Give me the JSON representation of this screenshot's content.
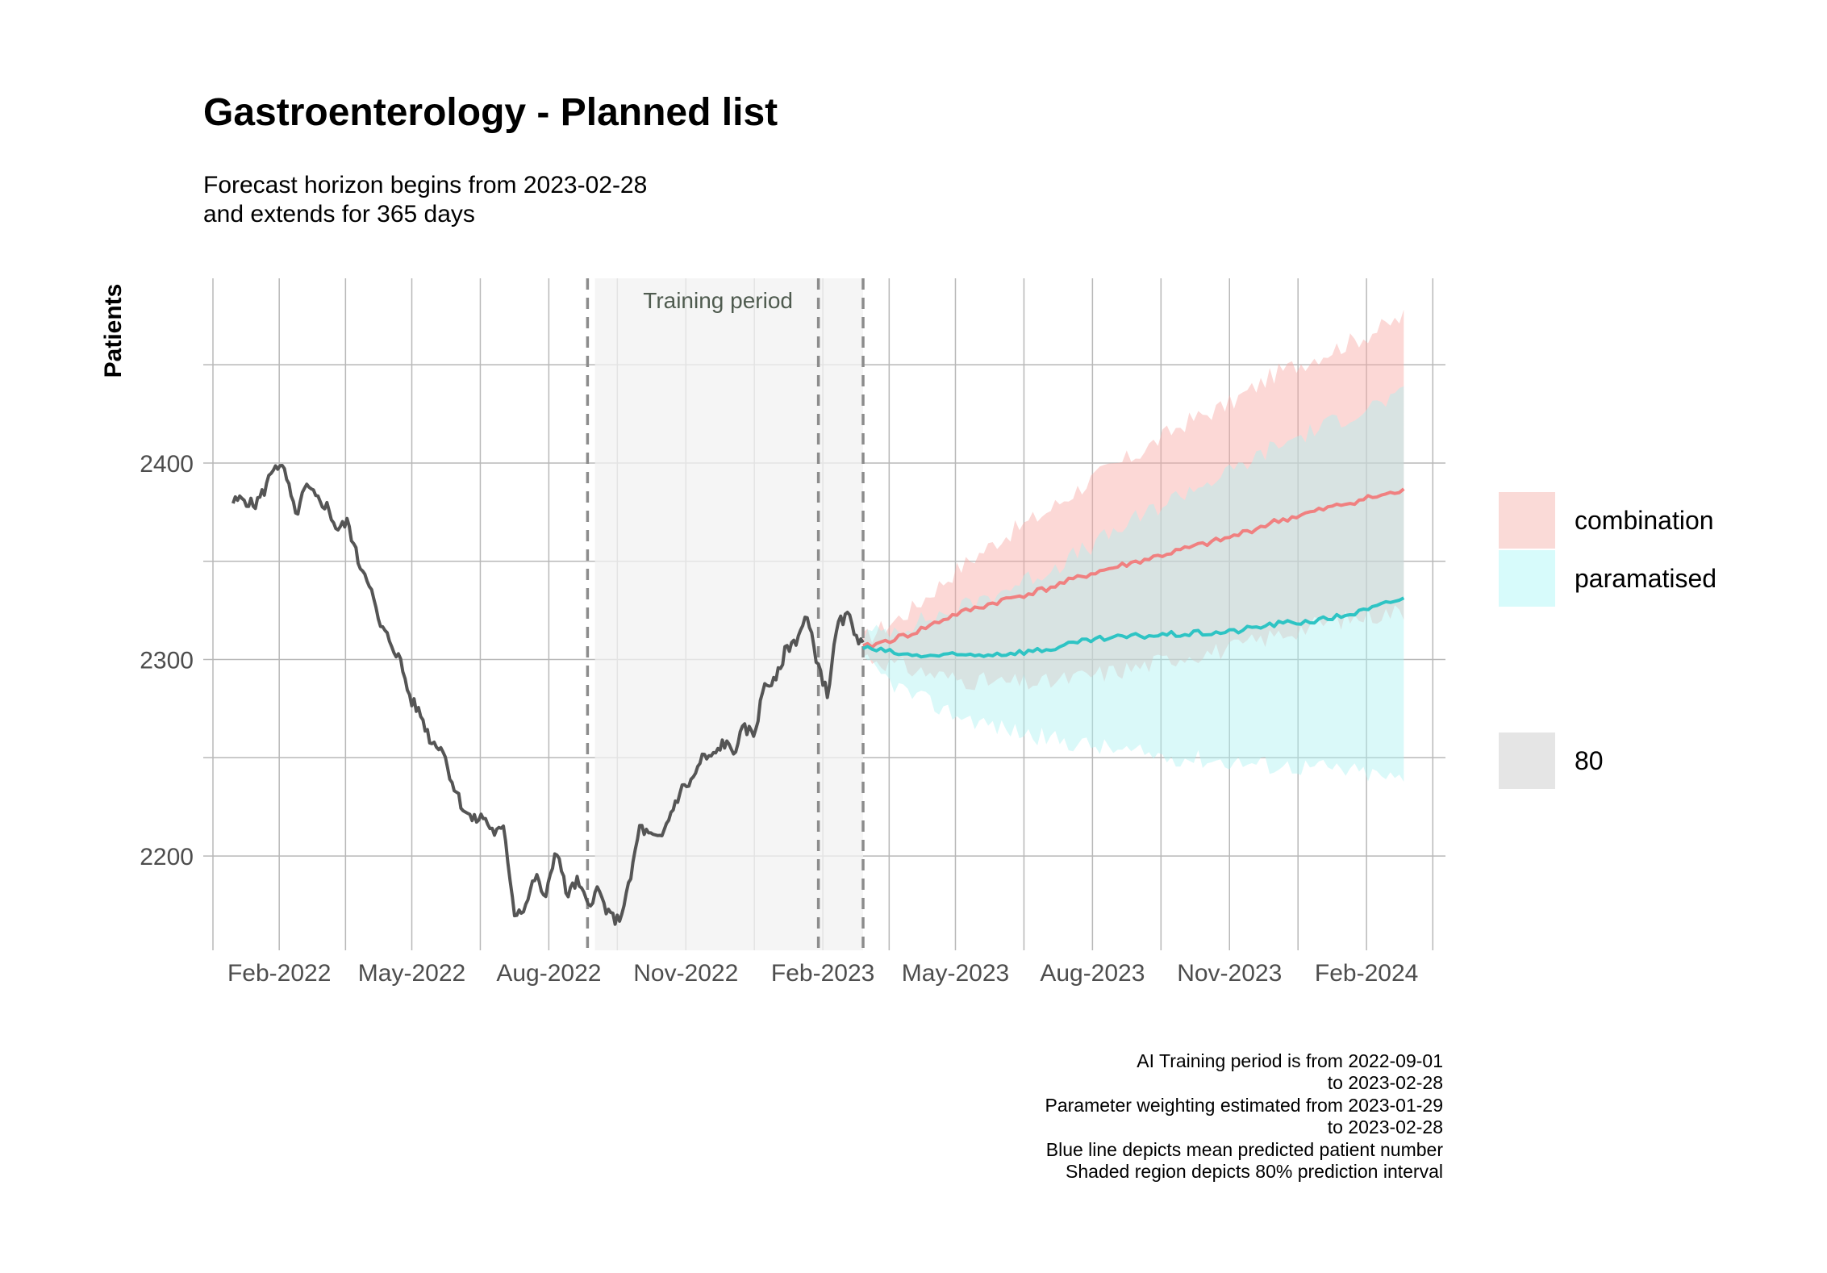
{
  "chart_data": {
    "type": "line",
    "title": "Gastroenterology - Planned list",
    "subtitle": [
      "Forecast horizon begins from 2023-02-28",
      "and extends for 365 days"
    ],
    "xlabel": "",
    "ylabel": "Patients",
    "x_tick_labels": [
      "Feb-2022",
      "May-2022",
      "Aug-2022",
      "Nov-2022",
      "Feb-2023",
      "May-2023",
      "Aug-2023",
      "Nov-2023",
      "Feb-2024"
    ],
    "x_tick_dates": [
      "2022-02-01",
      "2022-05-01",
      "2022-08-01",
      "2022-11-01",
      "2023-02-01",
      "2023-05-01",
      "2023-08-01",
      "2023-11-01",
      "2024-02-01"
    ],
    "xlim": [
      "2021-12-12",
      "2024-03-25"
    ],
    "y_ticks": [
      2200,
      2300,
      2400
    ],
    "ylim": [
      2152,
      2494
    ],
    "grid": true,
    "legend_position": "right",
    "annotation": {
      "label": "Training period",
      "shaded_from": "2022-09-01",
      "shaded_to": "2023-02-28",
      "dashed_lines": [
        "2022-08-27",
        "2023-01-29",
        "2023-02-28"
      ]
    },
    "historical": {
      "color": "#555555",
      "points": [
        [
          "2022-01-01",
          2380
        ],
        [
          "2022-01-08",
          2382
        ],
        [
          "2022-01-15",
          2378
        ],
        [
          "2022-01-22",
          2386
        ],
        [
          "2022-01-29",
          2400
        ],
        [
          "2022-02-05",
          2395
        ],
        [
          "2022-02-12",
          2373
        ],
        [
          "2022-02-19",
          2388
        ],
        [
          "2022-02-26",
          2382
        ],
        [
          "2022-03-05",
          2378
        ],
        [
          "2022-03-12",
          2366
        ],
        [
          "2022-03-19",
          2370
        ],
        [
          "2022-03-26",
          2350
        ],
        [
          "2022-04-02",
          2341
        ],
        [
          "2022-04-09",
          2318
        ],
        [
          "2022-04-16",
          2310
        ],
        [
          "2022-04-23",
          2300
        ],
        [
          "2022-04-30",
          2280
        ],
        [
          "2022-05-07",
          2272
        ],
        [
          "2022-05-14",
          2258
        ],
        [
          "2022-05-21",
          2256
        ],
        [
          "2022-05-28",
          2238
        ],
        [
          "2022-06-04",
          2225
        ],
        [
          "2022-06-11",
          2218
        ],
        [
          "2022-06-18",
          2220
        ],
        [
          "2022-06-25",
          2212
        ],
        [
          "2022-07-02",
          2213
        ],
        [
          "2022-07-09",
          2171
        ],
        [
          "2022-07-16",
          2174
        ],
        [
          "2022-07-23",
          2190
        ],
        [
          "2022-07-30",
          2178
        ],
        [
          "2022-08-06",
          2205
        ],
        [
          "2022-08-13",
          2180
        ],
        [
          "2022-08-20",
          2187
        ],
        [
          "2022-08-27",
          2175
        ],
        [
          "2022-09-03",
          2183
        ],
        [
          "2022-09-10",
          2170
        ],
        [
          "2022-09-17",
          2167
        ],
        [
          "2022-09-24",
          2185
        ],
        [
          "2022-10-01",
          2215
        ],
        [
          "2022-10-08",
          2210
        ],
        [
          "2022-10-15",
          2208
        ],
        [
          "2022-10-22",
          2222
        ],
        [
          "2022-10-29",
          2234
        ],
        [
          "2022-11-05",
          2238
        ],
        [
          "2022-11-12",
          2250
        ],
        [
          "2022-11-19",
          2250
        ],
        [
          "2022-11-26",
          2258
        ],
        [
          "2022-12-03",
          2253
        ],
        [
          "2022-12-10",
          2265
        ],
        [
          "2022-12-17",
          2262
        ],
        [
          "2022-12-24",
          2288
        ],
        [
          "2022-12-31",
          2288
        ],
        [
          "2023-01-07",
          2305
        ],
        [
          "2023-01-14",
          2310
        ],
        [
          "2023-01-21",
          2322
        ],
        [
          "2023-01-28",
          2300
        ],
        [
          "2023-02-04",
          2282
        ],
        [
          "2023-02-11",
          2318
        ],
        [
          "2023-02-18",
          2322
        ],
        [
          "2023-02-28",
          2306
        ]
      ]
    },
    "series": [
      {
        "name": "combination",
        "color": "#f08080",
        "band_color": "#f8a8a4",
        "mean": [
          [
            "2023-02-28",
            2306
          ],
          [
            "2023-04-01",
            2313
          ],
          [
            "2023-05-01",
            2323
          ],
          [
            "2023-06-01",
            2330
          ],
          [
            "2023-07-01",
            2336
          ],
          [
            "2023-08-01",
            2344
          ],
          [
            "2023-09-01",
            2350
          ],
          [
            "2023-10-01",
            2356
          ],
          [
            "2023-11-01",
            2362
          ],
          [
            "2023-12-01",
            2370
          ],
          [
            "2024-01-01",
            2376
          ],
          [
            "2024-02-01",
            2382
          ],
          [
            "2024-02-28",
            2386
          ]
        ],
        "upper": [
          [
            "2023-02-28",
            2310
          ],
          [
            "2023-04-01",
            2325
          ],
          [
            "2023-05-01",
            2345
          ],
          [
            "2023-06-01",
            2362
          ],
          [
            "2023-07-01",
            2375
          ],
          [
            "2023-08-01",
            2392
          ],
          [
            "2023-09-01",
            2405
          ],
          [
            "2023-10-01",
            2420
          ],
          [
            "2023-11-01",
            2430
          ],
          [
            "2023-12-01",
            2445
          ],
          [
            "2024-01-01",
            2455
          ],
          [
            "2024-02-01",
            2465
          ],
          [
            "2024-02-28",
            2475
          ]
        ],
        "lower": [
          [
            "2023-02-28",
            2302
          ],
          [
            "2023-04-01",
            2295
          ],
          [
            "2023-05-01",
            2290
          ],
          [
            "2023-06-01",
            2288
          ],
          [
            "2023-07-01",
            2288
          ],
          [
            "2023-08-01",
            2292
          ],
          [
            "2023-09-01",
            2296
          ],
          [
            "2023-10-01",
            2302
          ],
          [
            "2023-11-01",
            2305
          ],
          [
            "2023-12-01",
            2312
          ],
          [
            "2024-01-01",
            2318
          ],
          [
            "2024-02-01",
            2322
          ],
          [
            "2024-02-28",
            2325
          ]
        ]
      },
      {
        "name": "paramatised",
        "color": "#2ec4c4",
        "band_color": "#aef2f2",
        "mean": [
          [
            "2023-02-28",
            2306
          ],
          [
            "2023-04-01",
            2302
          ],
          [
            "2023-05-01",
            2302
          ],
          [
            "2023-06-01",
            2303
          ],
          [
            "2023-07-01",
            2305
          ],
          [
            "2023-08-01",
            2310
          ],
          [
            "2023-09-01",
            2312
          ],
          [
            "2023-10-01",
            2313
          ],
          [
            "2023-11-01",
            2314
          ],
          [
            "2023-12-01",
            2318
          ],
          [
            "2024-01-01",
            2320
          ],
          [
            "2024-02-01",
            2325
          ],
          [
            "2024-02-28",
            2332
          ]
        ],
        "upper": [
          [
            "2023-02-28",
            2312
          ],
          [
            "2023-04-01",
            2318
          ],
          [
            "2023-05-01",
            2325
          ],
          [
            "2023-06-01",
            2335
          ],
          [
            "2023-07-01",
            2345
          ],
          [
            "2023-08-01",
            2358
          ],
          [
            "2023-09-01",
            2372
          ],
          [
            "2023-10-01",
            2385
          ],
          [
            "2023-11-01",
            2395
          ],
          [
            "2023-12-01",
            2408
          ],
          [
            "2024-01-01",
            2418
          ],
          [
            "2024-02-01",
            2428
          ],
          [
            "2024-02-28",
            2435
          ]
        ],
        "lower": [
          [
            "2023-02-28",
            2298
          ],
          [
            "2023-04-01",
            2282
          ],
          [
            "2023-05-01",
            2272
          ],
          [
            "2023-06-01",
            2265
          ],
          [
            "2023-07-01",
            2260
          ],
          [
            "2023-08-01",
            2256
          ],
          [
            "2023-09-01",
            2252
          ],
          [
            "2023-10-01",
            2250
          ],
          [
            "2023-11-01",
            2248
          ],
          [
            "2023-12-01",
            2246
          ],
          [
            "2024-01-01",
            2245
          ],
          [
            "2024-02-01",
            2242
          ],
          [
            "2024-02-28",
            2238
          ]
        ]
      }
    ],
    "legend": {
      "entries": [
        {
          "label": "combination",
          "color": "#fadad7"
        },
        {
          "label": "paramatised",
          "color": "#d7fbfb"
        }
      ],
      "interval": {
        "label": "80",
        "color": "#e5e5e5"
      }
    },
    "caption": [
      "AI Training period is from 2022-09-01",
      "to 2023-02-28",
      "Parameter weighting estimated from 2023-01-29",
      "to 2023-02-28",
      "Blue line depicts mean predicted patient number",
      "Shaded region depicts 80% prediction interval"
    ]
  }
}
